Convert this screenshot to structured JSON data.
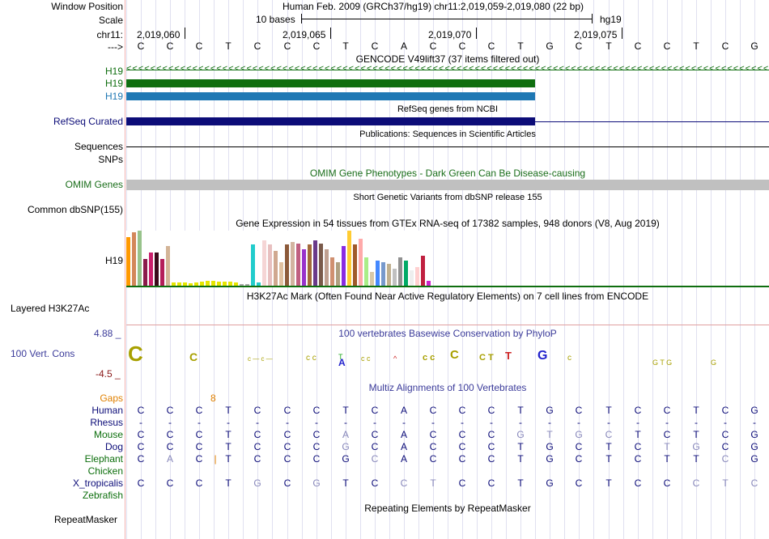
{
  "header": {
    "window_position_label": "Window Position",
    "window_position_value": "Human Feb. 2009 (GRCh37/hg19)   chr11:2,019,059-2,019,080 (22 bp)",
    "scale_label": "Scale",
    "scale_text": "10 bases",
    "assembly": "hg19",
    "chrom_label": "chr11:",
    "ticks": [
      "2,019,060",
      "2,019,065",
      "2,019,070",
      "2,019,075"
    ],
    "strand_label": "--->"
  },
  "bases": [
    "C",
    "C",
    "C",
    "T",
    "C",
    "C",
    "C",
    "T",
    "C",
    "A",
    "C",
    "C",
    "C",
    "T",
    "G",
    "C",
    "T",
    "C",
    "C",
    "T",
    "C",
    "G"
  ],
  "tracks": {
    "gencode_title": "GENCODE V49lift37 (37 items filtered out)",
    "gencode_genes": [
      "H19",
      "H19",
      "H19"
    ],
    "refseq_title": "RefSeq genes from NCBI",
    "refseq_label": "RefSeq Curated",
    "publications_title": "Publications: Sequences in Scientific Articles",
    "sequences_label": "Sequences",
    "snps_label": "SNPs",
    "omim_title": "OMIM Gene Phenotypes - Dark Green Can Be Disease-causing",
    "omim_label": "OMIM Genes",
    "dbsnp_title": "Short Genetic Variants from dbSNP release 155",
    "dbsnp_label": "Common dbSNP(155)",
    "gtex_title": "Gene Expression in 54 tissues from GTEx RNA-seq of 17382 samples, 948 donors (V8, Aug 2019)",
    "gtex_label": "H19",
    "h3k27ac_title": "H3K27Ac Mark (Often Found Near Active Regulatory Elements) on 7 cell lines from ENCODE",
    "h3k27ac_label": "Layered H3K27Ac",
    "cons_title": "100 vertebrates Basewise Conservation by PhyloP",
    "cons_label": "100 Vert. Cons",
    "cons_max": "4.88 _",
    "cons_min": "-4.5 _",
    "multiz_title": "Multiz Alignments of 100 Vertebrates",
    "gaps_label": "Gaps",
    "gaps_value": "8",
    "repeat_title": "Repeating Elements by RepeatMasker",
    "repeat_label": "RepeatMasker"
  },
  "gtex_chart": {
    "values": [
      62,
      68,
      70,
      34,
      42,
      42,
      34,
      50,
      4,
      4,
      4,
      3,
      4,
      5,
      6,
      6,
      5,
      5,
      5,
      4,
      2,
      2,
      52,
      4,
      58,
      52,
      44,
      30,
      52,
      56,
      54,
      46,
      52,
      58,
      54,
      46,
      36,
      30,
      50,
      70,
      52,
      60,
      36,
      18,
      32,
      30,
      28,
      22,
      36,
      32,
      20,
      24,
      38,
      6
    ],
    "colors": [
      "#ff9900",
      "#d3875a",
      "#98c38b",
      "#8b1a4a",
      "#c91e6a",
      "#3a0a1a",
      "#b41e5a",
      "#d3b497",
      "#e6e600",
      "#e6e600",
      "#e6e600",
      "#e6e600",
      "#e6e600",
      "#e6e600",
      "#e6e600",
      "#e6e600",
      "#e6e600",
      "#e6e600",
      "#e6e600",
      "#e6e600",
      "#aaaaaa",
      "#aaaaaa",
      "#22cccc",
      "#22cccc",
      "#f5d5d5",
      "#e8c0c0",
      "#d0a890",
      "#e0c0a0",
      "#8c5a3a",
      "#d3b4a0",
      "#c06080",
      "#9932cc",
      "#a36a3a",
      "#6a3a8a",
      "#7a5a4a",
      "#c0a090",
      "#d09070",
      "#b0a080",
      "#8a2be2",
      "#ffcc33",
      "#a05a2a",
      "#ffaaaa",
      "#aaee88",
      "#d8c8a8",
      "#4488ff",
      "#7799cc",
      "#c0b090",
      "#c0c0c0",
      "#909090",
      "#00aa66",
      "#eeeeee",
      "#ffd0d0",
      "#c02040",
      "#cc22cc"
    ]
  },
  "multiz": {
    "species": [
      {
        "name": "Human",
        "seq": [
          "C",
          "C",
          "C",
          "T",
          "C",
          "C",
          "C",
          "T",
          "C",
          "A",
          "C",
          "C",
          "C",
          "T",
          "G",
          "C",
          "T",
          "C",
          "C",
          "T",
          "C",
          "G"
        ],
        "dim": []
      },
      {
        "name": "Rhesus",
        "seq": [
          "-",
          "-",
          "-",
          "-",
          "-",
          "-",
          "-",
          "-",
          "-",
          "-",
          "-",
          "-",
          "-",
          "-",
          "-",
          "-",
          "-",
          "-",
          "-",
          "-",
          "-",
          "-"
        ],
        "dim": []
      },
      {
        "name": "Mouse",
        "seq": [
          "C",
          "C",
          "C",
          "T",
          "C",
          "C",
          "C",
          "A",
          "C",
          "A",
          "C",
          "C",
          "C",
          "G",
          "T",
          "G",
          "C",
          "T",
          "C",
          "T",
          "C",
          "G"
        ],
        "dim": [
          7,
          13,
          14,
          15,
          16
        ]
      },
      {
        "name": "Dog",
        "seq": [
          "C",
          "C",
          "C",
          "T",
          "C",
          "C",
          "C",
          "G",
          "C",
          "A",
          "C",
          "C",
          "C",
          "T",
          "G",
          "C",
          "T",
          "C",
          "T",
          "G",
          "C",
          "G"
        ],
        "dim": [
          7,
          18,
          19
        ]
      },
      {
        "name": "Elephant",
        "seq": [
          "C",
          "A",
          "C",
          "|",
          "T",
          "C",
          "C",
          "C",
          "G",
          "C",
          "A",
          "C",
          "C",
          "C",
          "T",
          "G",
          "C",
          "T",
          "C",
          "T",
          "T",
          "C",
          "G"
        ],
        "dim": [
          1,
          8,
          20
        ]
      },
      {
        "name": "Chicken",
        "seq": [],
        "dim": []
      },
      {
        "name": "X_tropicalis",
        "seq": [
          "C",
          "C",
          "C",
          "T",
          "G",
          "C",
          "G",
          "T",
          "C",
          "C",
          "T",
          "C",
          "C",
          "T",
          "G",
          "C",
          "T",
          "C",
          "C",
          "C",
          "T",
          "C"
        ],
        "dim": [
          4,
          6,
          9,
          10,
          19,
          20,
          21
        ]
      },
      {
        "name": "Zebrafish",
        "seq": [],
        "dim": []
      }
    ]
  },
  "colors": {
    "gencode_green": "#0f6e0f",
    "gencode_blue": "#1f78b4",
    "refseq_navy": "#0c0c78",
    "omim_green": "#1a6e1a",
    "cons_blue": "#3b3b9a",
    "cons_red": "#8b1a1a"
  }
}
